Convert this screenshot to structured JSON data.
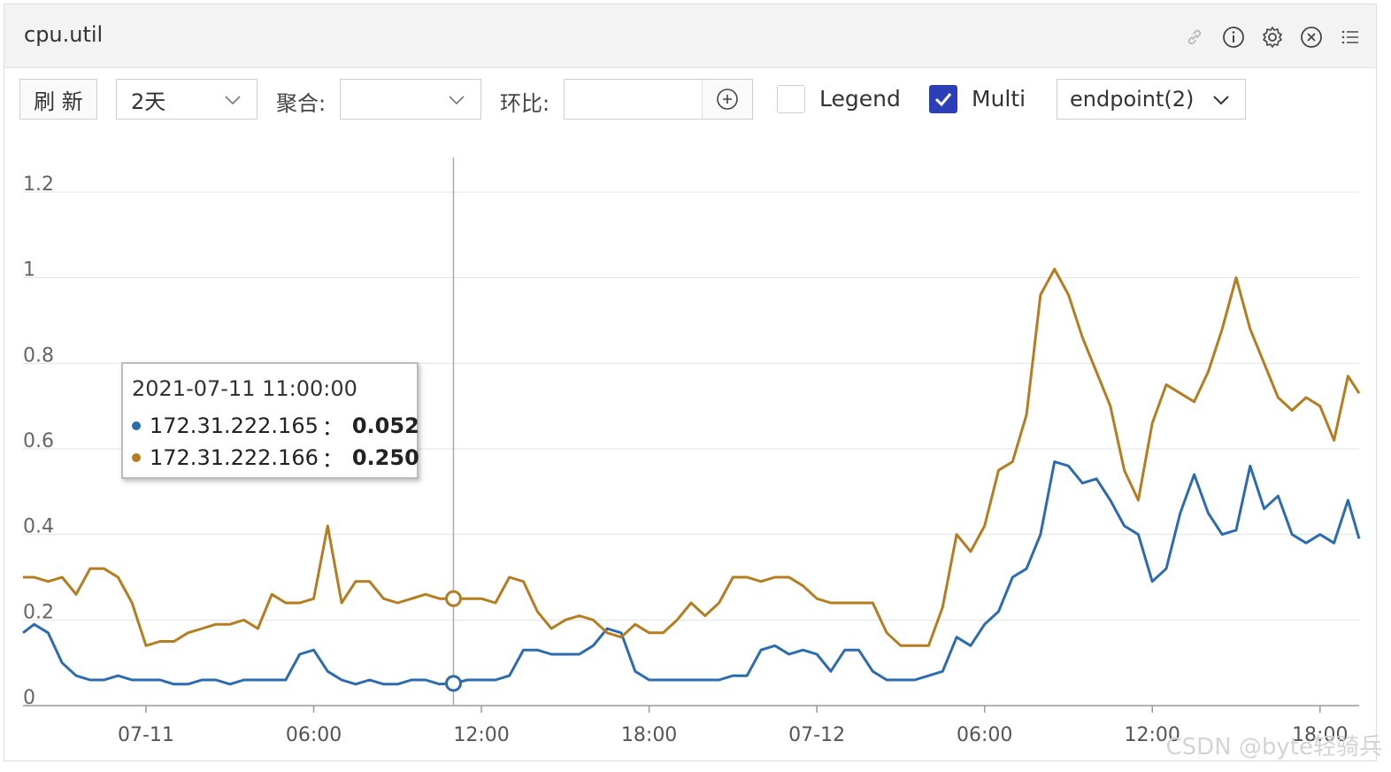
{
  "panel": {
    "title": "cpu.util",
    "icons": [
      "link-icon",
      "info-icon",
      "gear-icon",
      "close-icon",
      "menu-list-icon"
    ]
  },
  "toolbar": {
    "refresh_label": "刷 新",
    "range_value": "2天",
    "aggregate_label": "聚合:",
    "aggregate_value": "",
    "compare_label": "环比:",
    "compare_value": "",
    "legend_label": "Legend",
    "legend_checked": false,
    "multi_label": "Multi",
    "multi_checked": true,
    "endpoint_value": "endpoint(2)"
  },
  "tooltip": {
    "time": "2021-07-11 11:00:00",
    "rows": [
      {
        "name": "172.31.222.165",
        "sep": "：",
        "value": "0.052",
        "color": "#2b6cb0"
      },
      {
        "name": "172.31.222.166",
        "sep": "：",
        "value": "0.250",
        "color": "#b57d1f"
      }
    ]
  },
  "watermark": "CSDN @byte轻骑兵",
  "chart_data": {
    "type": "line",
    "title": "",
    "xlabel": "",
    "ylabel": "",
    "ylim": [
      0,
      1.2
    ],
    "yticks": [
      "0",
      "0.2",
      "0.4",
      "0.6",
      "0.8",
      "1",
      "1.2"
    ],
    "xticks": [
      "07-11",
      "06:00",
      "12:00",
      "18:00",
      "07-12",
      "06:00",
      "12:00",
      "18:00"
    ],
    "x_hours_note": "x values are hours after 2021-07-10 00:00",
    "xlim": [
      19.6,
      67.4
    ],
    "grid": true,
    "legend": "none",
    "crosshair_x": 35,
    "series": [
      {
        "name": "172.31.222.165",
        "color": "#2b6cb0",
        "x": [
          19.6,
          20,
          20.5,
          21,
          21.5,
          22,
          22.5,
          23,
          23.5,
          24,
          24.5,
          25,
          25.5,
          26,
          26.5,
          27,
          27.5,
          28,
          28.5,
          29,
          29.5,
          30,
          30.5,
          31,
          31.5,
          32,
          32.5,
          33,
          33.5,
          34,
          34.5,
          35,
          35.5,
          36,
          36.5,
          37,
          37.5,
          38,
          38.5,
          39,
          39.5,
          40,
          40.5,
          41,
          41.5,
          42,
          42.5,
          43,
          43.5,
          44,
          44.5,
          45,
          45.5,
          46,
          46.5,
          47,
          47.5,
          48,
          48.5,
          49,
          49.5,
          50,
          50.5,
          51,
          51.5,
          52,
          52.5,
          53,
          53.5,
          54,
          54.5,
          55,
          55.5,
          56,
          56.5,
          57,
          57.5,
          58,
          58.5,
          59,
          59.5,
          60,
          60.5,
          61,
          61.5,
          62,
          62.5,
          63,
          63.5,
          64,
          64.5,
          65,
          65.5,
          66,
          66.5,
          67,
          67.4
        ],
        "y": [
          0.17,
          0.19,
          0.17,
          0.1,
          0.07,
          0.06,
          0.06,
          0.07,
          0.06,
          0.06,
          0.06,
          0.05,
          0.05,
          0.06,
          0.06,
          0.05,
          0.06,
          0.06,
          0.06,
          0.06,
          0.12,
          0.13,
          0.08,
          0.06,
          0.05,
          0.06,
          0.05,
          0.05,
          0.06,
          0.06,
          0.05,
          0.052,
          0.06,
          0.06,
          0.06,
          0.07,
          0.13,
          0.13,
          0.12,
          0.12,
          0.12,
          0.14,
          0.18,
          0.17,
          0.08,
          0.06,
          0.06,
          0.06,
          0.06,
          0.06,
          0.06,
          0.07,
          0.07,
          0.13,
          0.14,
          0.12,
          0.13,
          0.12,
          0.08,
          0.13,
          0.13,
          0.08,
          0.06,
          0.06,
          0.06,
          0.07,
          0.08,
          0.16,
          0.14,
          0.19,
          0.22,
          0.3,
          0.32,
          0.4,
          0.57,
          0.56,
          0.52,
          0.53,
          0.48,
          0.42,
          0.4,
          0.29,
          0.32,
          0.45,
          0.54,
          0.45,
          0.4,
          0.41,
          0.56,
          0.46,
          0.49,
          0.4,
          0.38,
          0.4,
          0.38,
          0.48,
          0.39
        ]
      },
      {
        "name": "172.31.222.166",
        "color": "#b57d1f",
        "x": [
          19.6,
          20,
          20.5,
          21,
          21.5,
          22,
          22.5,
          23,
          23.5,
          24,
          24.5,
          25,
          25.5,
          26,
          26.5,
          27,
          27.5,
          28,
          28.5,
          29,
          29.5,
          30,
          30.5,
          31,
          31.5,
          32,
          32.5,
          33,
          33.5,
          34,
          34.5,
          35,
          35.5,
          36,
          36.5,
          37,
          37.5,
          38,
          38.5,
          39,
          39.5,
          40,
          40.5,
          41,
          41.5,
          42,
          42.5,
          43,
          43.5,
          44,
          44.5,
          45,
          45.5,
          46,
          46.5,
          47,
          47.5,
          48,
          48.5,
          49,
          49.5,
          50,
          50.5,
          51,
          51.5,
          52,
          52.5,
          53,
          53.5,
          54,
          54.5,
          55,
          55.5,
          56,
          56.5,
          57,
          57.5,
          58,
          58.5,
          59,
          59.5,
          60,
          60.5,
          61,
          61.5,
          62,
          62.5,
          63,
          63.5,
          64,
          64.5,
          65,
          65.5,
          66,
          66.5,
          67,
          67.4
        ],
        "y": [
          0.3,
          0.3,
          0.29,
          0.3,
          0.26,
          0.32,
          0.32,
          0.3,
          0.24,
          0.14,
          0.15,
          0.15,
          0.17,
          0.18,
          0.19,
          0.19,
          0.2,
          0.18,
          0.26,
          0.24,
          0.24,
          0.25,
          0.42,
          0.24,
          0.29,
          0.29,
          0.25,
          0.24,
          0.25,
          0.26,
          0.25,
          0.25,
          0.25,
          0.25,
          0.24,
          0.3,
          0.29,
          0.22,
          0.18,
          0.2,
          0.21,
          0.2,
          0.17,
          0.16,
          0.19,
          0.17,
          0.17,
          0.2,
          0.24,
          0.21,
          0.24,
          0.3,
          0.3,
          0.29,
          0.3,
          0.3,
          0.28,
          0.25,
          0.24,
          0.24,
          0.24,
          0.24,
          0.17,
          0.14,
          0.14,
          0.14,
          0.23,
          0.4,
          0.36,
          0.42,
          0.55,
          0.57,
          0.68,
          0.96,
          1.02,
          0.96,
          0.86,
          0.78,
          0.7,
          0.55,
          0.48,
          0.66,
          0.75,
          0.73,
          0.71,
          0.78,
          0.88,
          1.0,
          0.88,
          0.8,
          0.72,
          0.69,
          0.72,
          0.7,
          0.62,
          0.77,
          0.73
        ]
      }
    ]
  }
}
